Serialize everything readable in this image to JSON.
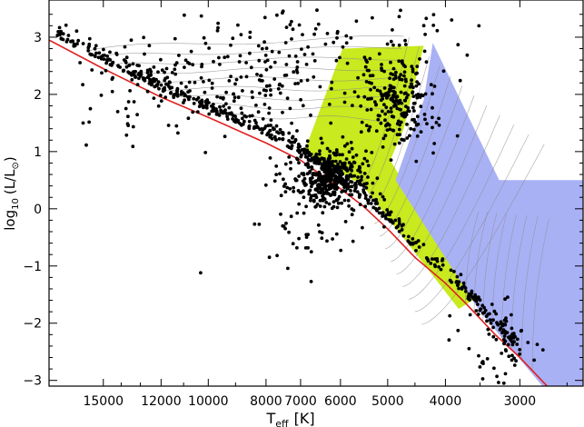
{
  "chart_data": {
    "type": "scatter",
    "title": "",
    "xlabel_main": "T",
    "xlabel_sub": "eff",
    "xlabel_unit": "[K]",
    "ylabel_prefix": "log",
    "ylabel_sub": "10",
    "ylabel_inner": "(L/L",
    "ylabel_symbol": "⊙",
    "ylabel_close": ")",
    "x_scale": "log (reversed, temperature decreasing to the right)",
    "xlim": [
      18500,
      2350
    ],
    "ylim": [
      -3.1,
      3.65
    ],
    "x_ticks": [
      {
        "value": 15000,
        "label": "15000"
      },
      {
        "value": 12000,
        "label": "12000"
      },
      {
        "value": 10000,
        "label": "10000"
      },
      {
        "value": 8000,
        "label": "8000"
      },
      {
        "value": 7000,
        "label": "7000"
      },
      {
        "value": 6000,
        "label": "6000"
      },
      {
        "value": 5000,
        "label": "5000"
      },
      {
        "value": 4000,
        "label": "4000"
      },
      {
        "value": 3000,
        "label": "3000"
      }
    ],
    "y_ticks": [
      {
        "value": 3,
        "label": "3"
      },
      {
        "value": 2,
        "label": "2"
      },
      {
        "value": 1,
        "label": "1"
      },
      {
        "value": 0,
        "label": "0"
      },
      {
        "value": -1,
        "label": "−1"
      },
      {
        "value": -2,
        "label": "−2"
      },
      {
        "value": -3,
        "label": "−3"
      }
    ],
    "regions": [
      {
        "name": "yellow-green region",
        "color": "#c8ea1e",
        "polygon": [
          [
            5950,
            2.8
          ],
          [
            4350,
            2.85
          ],
          [
            4700,
            1.4
          ],
          [
            4950,
            0.85
          ],
          [
            3600,
            -1.6
          ],
          [
            3800,
            -1.75
          ],
          [
            5500,
            0.4
          ],
          [
            6900,
            1.0
          ]
        ]
      },
      {
        "name": "blue region",
        "color": "#a9b1f5",
        "polygon": [
          [
            4200,
            2.9
          ],
          [
            3250,
            0.5
          ],
          [
            2350,
            0.5
          ],
          [
            2350,
            -3.1
          ],
          [
            2750,
            -3.1
          ],
          [
            3500,
            -1.8
          ],
          [
            4850,
            0.5
          ],
          [
            4350,
            1.9
          ]
        ]
      }
    ],
    "main_sequence_line": {
      "color": "#e02020",
      "points": [
        [
          18500,
          2.95
        ],
        [
          15000,
          2.45
        ],
        [
          12000,
          1.95
        ],
        [
          10000,
          1.6
        ],
        [
          8000,
          1.15
        ],
        [
          7000,
          0.85
        ],
        [
          6000,
          0.35
        ],
        [
          5500,
          0.05
        ],
        [
          5000,
          -0.35
        ],
        [
          4500,
          -0.85
        ],
        [
          4000,
          -1.3
        ],
        [
          3700,
          -1.65
        ],
        [
          3300,
          -2.2
        ],
        [
          3000,
          -2.6
        ],
        [
          2700,
          -3.1
        ]
      ]
    },
    "track_color": "#8a8a8a",
    "point_color": "#000000",
    "clusters": [
      {
        "name": "main-sequence-band",
        "x_range": [
          18000,
          3000
        ],
        "along_line": true,
        "count": 520,
        "scatter": 0.12,
        "offset": 0.12
      },
      {
        "name": "dense-core",
        "center": [
          6300,
          0.55
        ],
        "sigma_logT": 0.035,
        "sigma_y": 0.25,
        "count": 420
      },
      {
        "name": "giant-branch",
        "center": [
          4800,
          1.9
        ],
        "sigma_logT": 0.03,
        "sigma_y": 0.4,
        "count": 230
      },
      {
        "name": "upper-hot-field",
        "center": [
          9500,
          2.2
        ],
        "sigma_logT": 0.12,
        "sigma_y": 0.45,
        "count": 230
      },
      {
        "name": "cool-dwarfs",
        "center": [
          3200,
          -2.3
        ],
        "sigma_logT": 0.03,
        "sigma_y": 0.35,
        "count": 60
      },
      {
        "name": "top-scatter",
        "center": [
          6000,
          3.1
        ],
        "sigma_logT": 0.12,
        "sigma_y": 0.35,
        "count": 55
      },
      {
        "name": "subdwarf-scatter",
        "center": [
          6500,
          -0.4
        ],
        "sigma_logT": 0.05,
        "sigma_y": 0.35,
        "count": 40
      }
    ],
    "outliers": [
      [
        10300,
        -1.12
      ],
      [
        7500,
        -0.3
      ],
      [
        6800,
        -0.45
      ]
    ]
  }
}
